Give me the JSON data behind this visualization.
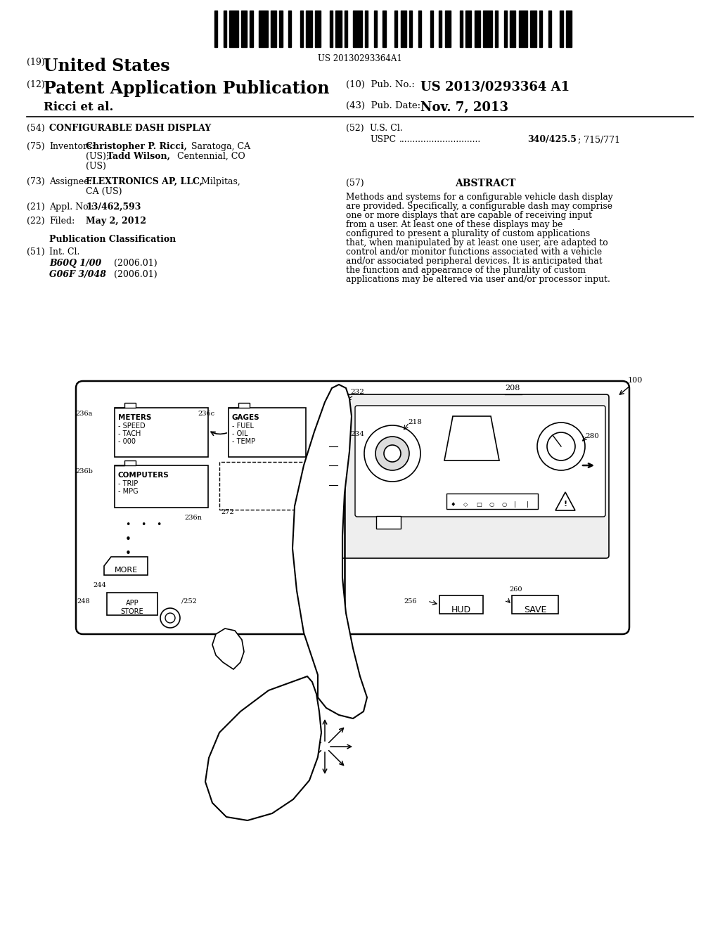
{
  "title": "CONFIGURABLE DASH DISPLAY",
  "patent_num": "US 2013/0293364 A1",
  "pub_date": "Nov. 7, 2013",
  "pub_num_barcode": "US 20130293364A1",
  "country": "United States",
  "kind": "Patent Application Publication",
  "inventors": "Christopher P. Ricci, Saratoga, CA (US); Tadd Wilson, Centennial, CO (US)",
  "assignee": "FLEXTRONICS AP, LLC, Milpitas, CA (US)",
  "appl_no": "13/462,593",
  "filed": "May 2, 2012",
  "int_cl_1": "B60Q 1/00",
  "int_cl_2": "G06F 3/048",
  "int_cl_date": "(2006.01)",
  "uspc": "340/425.5; 715/771",
  "abstract": "Methods and systems for a configurable vehicle dash display are provided. Specifically, a configurable dash may comprise one or more displays that are capable of receiving input from a user. At least one of these displays may be configured to present a plurality of custom applications that, when manipulated by at least one user, are adapted to control and/or monitor functions associated with a vehicle and/or associated peripheral devices. It is anticipated that the function and appearance of the plurality of custom applications may be altered via user and/or processor input.",
  "bg_color": "#ffffff",
  "text_color": "#000000",
  "barcode_widths": [
    1,
    2,
    1,
    1,
    3,
    1,
    2,
    1,
    1,
    2,
    3,
    1,
    2,
    1,
    1,
    2,
    1,
    3,
    1,
    1,
    2,
    1,
    2,
    3,
    1,
    1,
    2,
    1,
    1,
    2,
    3,
    1,
    1,
    2,
    1,
    2,
    1,
    3,
    1,
    1,
    2,
    1,
    1,
    2,
    1,
    3,
    1,
    2,
    1,
    1,
    2,
    3,
    1,
    1,
    2,
    1,
    2,
    1,
    3,
    1,
    1,
    2,
    1,
    1,
    2,
    1,
    3,
    1,
    2,
    1,
    1,
    2,
    1,
    3,
    1,
    1,
    2
  ]
}
